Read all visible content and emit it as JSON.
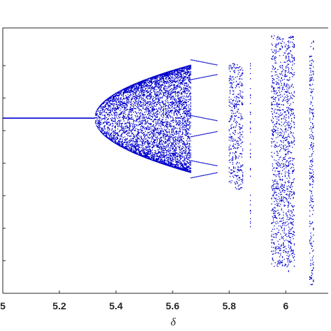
{
  "chart_data": {
    "type": "scatter",
    "title": "",
    "xlabel": "δ",
    "ylabel": "",
    "xlim": [
      5.0,
      6.15
    ],
    "ylim": [
      0,
      1
    ],
    "x_ticks": [
      {
        "value": 5.0,
        "label": "5"
      },
      {
        "value": 5.2,
        "label": "5.2"
      },
      {
        "value": 5.4,
        "label": "5.4"
      },
      {
        "value": 5.6,
        "label": "5.6"
      },
      {
        "value": 5.8,
        "label": "5.8"
      },
      {
        "value": 6.0,
        "label": "6"
      }
    ],
    "y_ticks": [
      0.0,
      0.123,
      0.245,
      0.368,
      0.49,
      0.613,
      0.736,
      0.858
    ],
    "grid": false,
    "marker_color": "#0000cc",
    "bifurcation": {
      "fixed_point": 0.66,
      "onset_x": 5.325,
      "envelope_upper_end": 0.86,
      "envelope_lower_end": 0.455,
      "chaotic_region_end": 5.665,
      "periodic_branch_x": [
        5.665,
        5.76
      ],
      "periodic_branches_y": [
        0.86,
        0.825,
        0.65,
        0.61,
        0.48,
        0.455
      ],
      "band_windows": [
        {
          "x": [
            5.8,
            5.85
          ],
          "y": [
            0.39,
            0.87
          ]
        },
        {
          "x": [
            5.95,
            6.03
          ],
          "y": [
            0.1,
            0.97
          ]
        },
        {
          "x": [
            6.085,
            6.1
          ],
          "y": [
            0.03,
            0.96
          ]
        }
      ],
      "sparse_columns": [
        {
          "x": 5.875,
          "y": [
            0.25,
            0.87
          ]
        },
        {
          "x": 6.01,
          "y": [
            0.05,
            0.95
          ]
        }
      ]
    }
  }
}
